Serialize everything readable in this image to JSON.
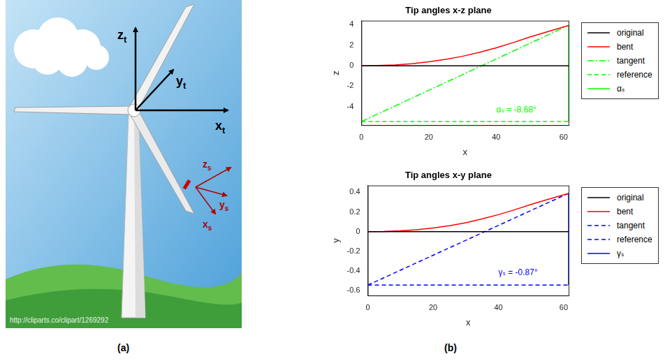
{
  "figure_labels": [
    "(a)",
    "(b)"
  ],
  "diagram": {
    "turbine_axes": [
      {
        "symbol": "z",
        "subscript": "t"
      },
      {
        "symbol": "y",
        "subscript": "t"
      },
      {
        "symbol": "x",
        "subscript": "t"
      }
    ],
    "sensor_axes": [
      {
        "symbol": "z",
        "subscript": "s"
      },
      {
        "symbol": "y",
        "subscript": "s"
      },
      {
        "symbol": "x",
        "subscript": "s"
      }
    ],
    "credit": "http://cliparts.co/clipart/1269292"
  },
  "chart_data": [
    {
      "type": "line",
      "title": "Tip angles x-z plane",
      "x_label": "x",
      "y_label": "z",
      "xlim": [
        0,
        61.5
      ],
      "xticks": [
        0,
        20,
        40,
        60
      ],
      "ylim": [
        -5.8,
        4.4
      ],
      "yticks": [
        -4,
        -2,
        0,
        2,
        4
      ],
      "grid": false,
      "legend": "right",
      "series": [
        {
          "name": "original",
          "color": "#000000",
          "line_style": "solid",
          "x": [
            0,
            61.5
          ],
          "values": [
            0,
            0
          ]
        },
        {
          "name": "bent",
          "color": "#ff0000",
          "line_style": "solid",
          "x": [
            0,
            5,
            10,
            15,
            20,
            25,
            30,
            35,
            40,
            45,
            50,
            55,
            61.5
          ],
          "values": [
            0,
            0.02,
            0.08,
            0.2,
            0.38,
            0.62,
            0.92,
            1.3,
            1.75,
            2.25,
            2.8,
            3.3,
            3.94
          ]
        },
        {
          "name": "tangent",
          "color": "#00ff00",
          "line_style": "dashdot",
          "x": [
            0,
            61.5
          ],
          "values": [
            -5.45,
            3.94
          ]
        },
        {
          "name": "reference",
          "color": "#00ff00",
          "line_style": "dashed",
          "x": [
            0,
            61.5
          ],
          "values": [
            -5.45,
            -5.45
          ]
        },
        {
          "name": "αₛ",
          "color": "#00ff00",
          "line_style": "solid",
          "x": [
            61.5,
            61.5
          ],
          "values": [
            -5.45,
            3.94
          ]
        }
      ],
      "annotations": [
        {
          "text": "αₛ = -8.68°",
          "x": 46,
          "y": -4.3,
          "color": "#00ff00"
        }
      ]
    },
    {
      "type": "line",
      "title": "Tip angles x-y plane",
      "x_label": "x",
      "y_label": "y",
      "xlim": [
        0,
        61.5
      ],
      "xticks": [
        0,
        20,
        40,
        60
      ],
      "ylim": [
        -0.65,
        0.47
      ],
      "yticks": [
        -0.6,
        -0.4,
        -0.2,
        0,
        0.2,
        0.4
      ],
      "grid": false,
      "legend": "right",
      "series": [
        {
          "name": "original",
          "color": "#000000",
          "line_style": "solid",
          "x": [
            0,
            61.5
          ],
          "values": [
            0,
            0
          ]
        },
        {
          "name": "bent",
          "color": "#ff0000",
          "line_style": "solid",
          "x": [
            0,
            5,
            10,
            15,
            20,
            25,
            30,
            35,
            40,
            45,
            50,
            55,
            61.5
          ],
          "values": [
            0,
            0.002,
            0.008,
            0.02,
            0.038,
            0.061,
            0.091,
            0.129,
            0.173,
            0.223,
            0.277,
            0.327,
            0.39
          ]
        },
        {
          "name": "tangent",
          "color": "#0000ff",
          "line_style": "dashed",
          "x": [
            0,
            61.5
          ],
          "values": [
            -0.544,
            0.39
          ]
        },
        {
          "name": "reference",
          "color": "#0000ff",
          "line_style": "dashed",
          "x": [
            0,
            61.5
          ],
          "values": [
            -0.544,
            -0.544
          ]
        },
        {
          "name": "γₛ",
          "color": "#0000ff",
          "line_style": "solid",
          "x": [
            61.5,
            61.5
          ],
          "values": [
            -0.544,
            0.39
          ]
        }
      ],
      "annotations": [
        {
          "text": "γₛ = -0.87°",
          "x": 46,
          "y": -0.42,
          "color": "#0000ff"
        }
      ]
    }
  ]
}
